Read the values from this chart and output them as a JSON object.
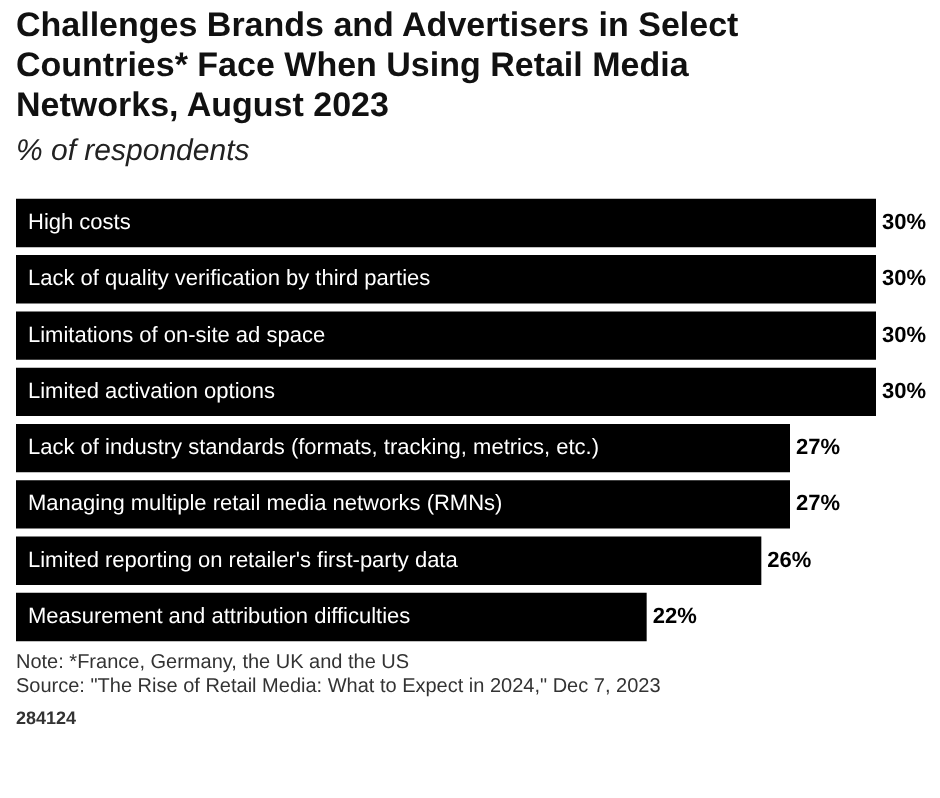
{
  "chart_data": {
    "type": "bar",
    "orientation": "horizontal",
    "title": "Challenges Brands and Advertisers in Select Countries* Face When Using Retail Media Networks, August 2023",
    "subtitle": "% of respondents",
    "categories": [
      "High costs",
      "Lack of quality verification by third parties",
      "Limitations of on-site ad space",
      "Limited activation options",
      "Lack of industry standards (formats, tracking, metrics, etc.)",
      "Managing multiple retail media networks (RMNs)",
      "Limited reporting on retailer's first-party data",
      "Measurement and attribution difficulties"
    ],
    "values": [
      30,
      30,
      30,
      30,
      27,
      27,
      26,
      22
    ],
    "value_labels": [
      "30%",
      "30%",
      "30%",
      "30%",
      "27%",
      "27%",
      "26%",
      "22%"
    ],
    "color": "#000000",
    "annotations": [
      "Note: *France, Germany, the UK and the US",
      "Source: \"The Rise of Retail Media: What to Expect in 2024,\" Dec 7, 2023",
      "284124"
    ]
  }
}
